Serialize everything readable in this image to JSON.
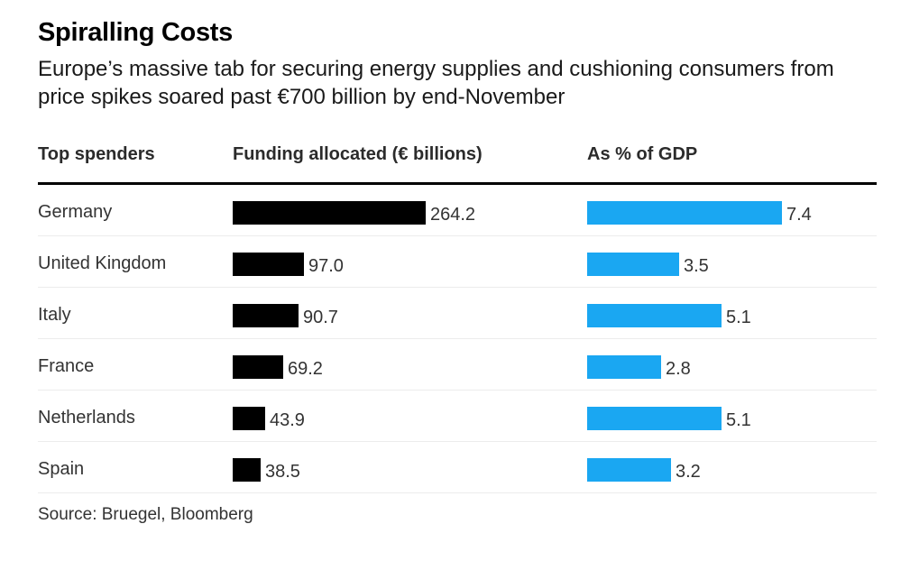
{
  "title": "Spiralling Costs",
  "subtitle": "Europe’s massive tab for securing energy supplies and cushioning consumers from price spikes soared past €700 billion by end-November",
  "headers": {
    "col1": "Top spenders",
    "col2": "Funding allocated (€ billions)",
    "col3": "As % of GDP"
  },
  "source": "Source: Bruegel, Bloomberg",
  "colors": {
    "funding_bar": "#000000",
    "gdp_bar": "#1aa7f2"
  },
  "chart_data": {
    "type": "bar",
    "title": "Spiralling Costs",
    "categories": [
      "Germany",
      "United Kingdom",
      "Italy",
      "France",
      "Netherlands",
      "Spain"
    ],
    "series": [
      {
        "name": "Funding allocated (€ billions)",
        "values": [
          264.2,
          97.0,
          90.7,
          69.2,
          43.9,
          38.5
        ],
        "labels": [
          "264.2",
          "97.0",
          "90.7",
          "69.2",
          "43.9",
          "38.5"
        ]
      },
      {
        "name": "As % of GDP",
        "values": [
          7.4,
          3.5,
          5.1,
          2.8,
          5.1,
          3.2
        ],
        "labels": [
          "7.4",
          "3.5",
          "5.1",
          "2.8",
          "5.1",
          "3.2"
        ]
      }
    ]
  }
}
